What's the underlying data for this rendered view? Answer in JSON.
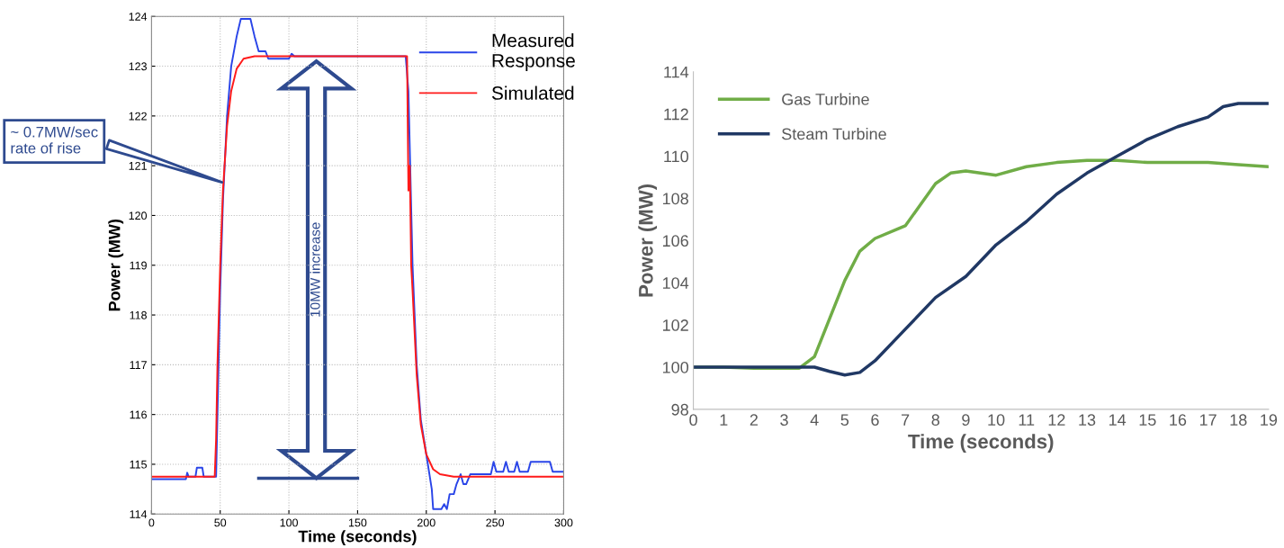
{
  "chart_data": [
    {
      "type": "line",
      "xlabel": "Time (seconds)",
      "ylabel": "Power (MW)",
      "xlim": [
        0,
        300
      ],
      "ylim": [
        114,
        124
      ],
      "xticks": [
        0,
        50,
        100,
        150,
        200,
        250,
        300
      ],
      "yticks": [
        114,
        115,
        116,
        117,
        118,
        119,
        120,
        121,
        122,
        123,
        124
      ],
      "grid": true,
      "legend": "top right",
      "series": [
        {
          "name": "Measured\nResponse",
          "color": "#2a45e8",
          "x": [
            0,
            25,
            26,
            27,
            28,
            32,
            33,
            37,
            38,
            47,
            48,
            50,
            52,
            55,
            58,
            62,
            65,
            72,
            75,
            78,
            83,
            85,
            95,
            100,
            102,
            104,
            185,
            187,
            190,
            193,
            196,
            200,
            204,
            205,
            211,
            213,
            215,
            217,
            220,
            222,
            225,
            227,
            229,
            232,
            247,
            249,
            251,
            256,
            258,
            260,
            264,
            266,
            268,
            274,
            276,
            290,
            292,
            300
          ],
          "values": [
            114.7,
            114.7,
            114.83,
            114.75,
            114.75,
            114.75,
            114.93,
            114.93,
            114.75,
            114.75,
            116,
            118.5,
            120.3,
            122,
            123,
            123.6,
            123.95,
            123.95,
            123.6,
            123.3,
            123.3,
            123.15,
            123.15,
            123.15,
            123.25,
            123.2,
            123.2,
            122.5,
            119,
            117,
            115.9,
            115.2,
            114.5,
            114.1,
            114.1,
            114.2,
            114.1,
            114.4,
            114.4,
            114.6,
            114.8,
            114.6,
            114.6,
            114.8,
            114.8,
            115.05,
            114.85,
            114.85,
            115.05,
            114.85,
            114.85,
            115.05,
            114.85,
            114.85,
            115.05,
            115.05,
            114.85,
            114.85
          ]
        },
        {
          "name": "Simulated",
          "color": "#ff1a1a",
          "x": [
            0,
            46,
            47,
            48,
            50,
            52,
            55,
            58,
            62,
            67,
            75,
            186,
            187,
            188,
            189,
            190,
            193,
            196,
            200,
            205,
            210,
            220,
            300
          ],
          "values": [
            114.75,
            114.75,
            115.5,
            117,
            119,
            120.5,
            121.8,
            122.5,
            122.95,
            123.15,
            123.2,
            123.2,
            120.5,
            121,
            119,
            118.5,
            116.8,
            115.8,
            115.2,
            114.9,
            114.8,
            114.75,
            114.75
          ]
        }
      ],
      "annotations": [
        {
          "text": "~ 0.7MW/sec\nrate of rise",
          "x": 53,
          "y": 120.65
        },
        "10MW increase"
      ]
    },
    {
      "type": "line",
      "xlabel": "Time (seconds)",
      "ylabel": "Power (MW)",
      "xlim": [
        0,
        19
      ],
      "ylim": [
        98,
        114
      ],
      "xticks": [
        0,
        1,
        2,
        3,
        4,
        5,
        6,
        7,
        8,
        9,
        10,
        11,
        12,
        13,
        14,
        15,
        16,
        17,
        18,
        19
      ],
      "yticks": [
        98,
        100,
        102,
        104,
        106,
        108,
        110,
        112,
        114
      ],
      "grid": false,
      "legend": "top left",
      "series": [
        {
          "name": "Gas Turbine",
          "color": "#70ad47",
          "x": [
            0,
            1,
            2,
            3,
            3.5,
            4,
            4.5,
            5,
            5.5,
            6,
            7,
            7.5,
            8,
            8.5,
            9,
            10,
            11,
            12,
            13,
            14,
            15,
            16,
            17,
            18,
            19
          ],
          "values": [
            100,
            100,
            99.95,
            99.95,
            99.95,
            100.5,
            102.3,
            104.1,
            105.5,
            106.1,
            106.7,
            107.7,
            108.7,
            109.2,
            109.3,
            109.1,
            109.5,
            109.7,
            109.8,
            109.8,
            109.7,
            109.7,
            109.7,
            109.6,
            109.5
          ]
        },
        {
          "name": "Steam Turbine",
          "color": "#203864",
          "x": [
            0,
            1,
            2,
            3,
            4,
            4.5,
            5,
            5.5,
            6,
            7,
            8,
            9,
            10,
            11,
            12,
            13,
            14,
            15,
            16,
            17,
            17.5,
            18,
            19
          ],
          "values": [
            100,
            100,
            100,
            100,
            100,
            99.8,
            99.63,
            99.75,
            100.3,
            101.8,
            103.3,
            104.3,
            105.8,
            106.9,
            108.2,
            109.2,
            110,
            110.8,
            111.4,
            111.85,
            112.35,
            112.5,
            112.5
          ]
        }
      ]
    }
  ]
}
